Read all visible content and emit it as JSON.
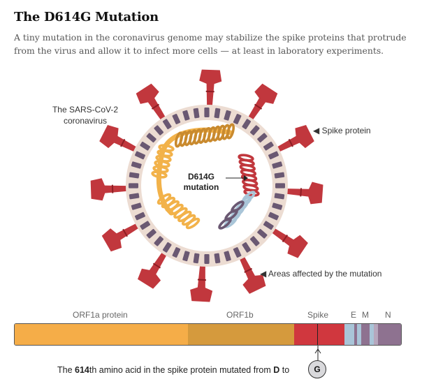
{
  "title": "The D614G Mutation",
  "subtitle": "A tiny mutation in the coronavirus genome may stabilize the spike proteins that protrude from the virus and allow it to infect more cells — at least in laboratory experiments.",
  "diagram": {
    "virus_label_line1": "The SARS-CoV-2",
    "virus_label_line2": "coronavirus",
    "spike_label": "◀ Spike protein",
    "areas_label": "◀ Areas affected by the mutation",
    "mutation_label_line1": "D614G",
    "mutation_label_line2": "mutation",
    "colors": {
      "spike": "#c1373d",
      "spike_dark": "#8e1e24",
      "membrane": "#ecdcd2",
      "membrane_tile": "#6a5872",
      "interior": "#ffffff",
      "rna_light": "#f2b24a",
      "rna_dark": "#c98a2e",
      "rna_red": "#c1373d",
      "rna_blue": "#a9c5d8"
    }
  },
  "genome": {
    "labels": {
      "orf1a": "ORF1a protein",
      "orf1b": "ORF1b",
      "spike": "Spike",
      "e": "E",
      "m": "M",
      "n": "N"
    },
    "colors": {
      "orf1a": "#f5ad48",
      "orf1b": "#d59a3d",
      "spike": "#d0373e",
      "blue": "#a9c5d8",
      "mauve": "#8e7290"
    }
  },
  "caption": {
    "part1": "The ",
    "number": "614",
    "part2": "th amino acid in the spike protein mutated from ",
    "from": "D",
    "part3": " to",
    "to": "G"
  }
}
